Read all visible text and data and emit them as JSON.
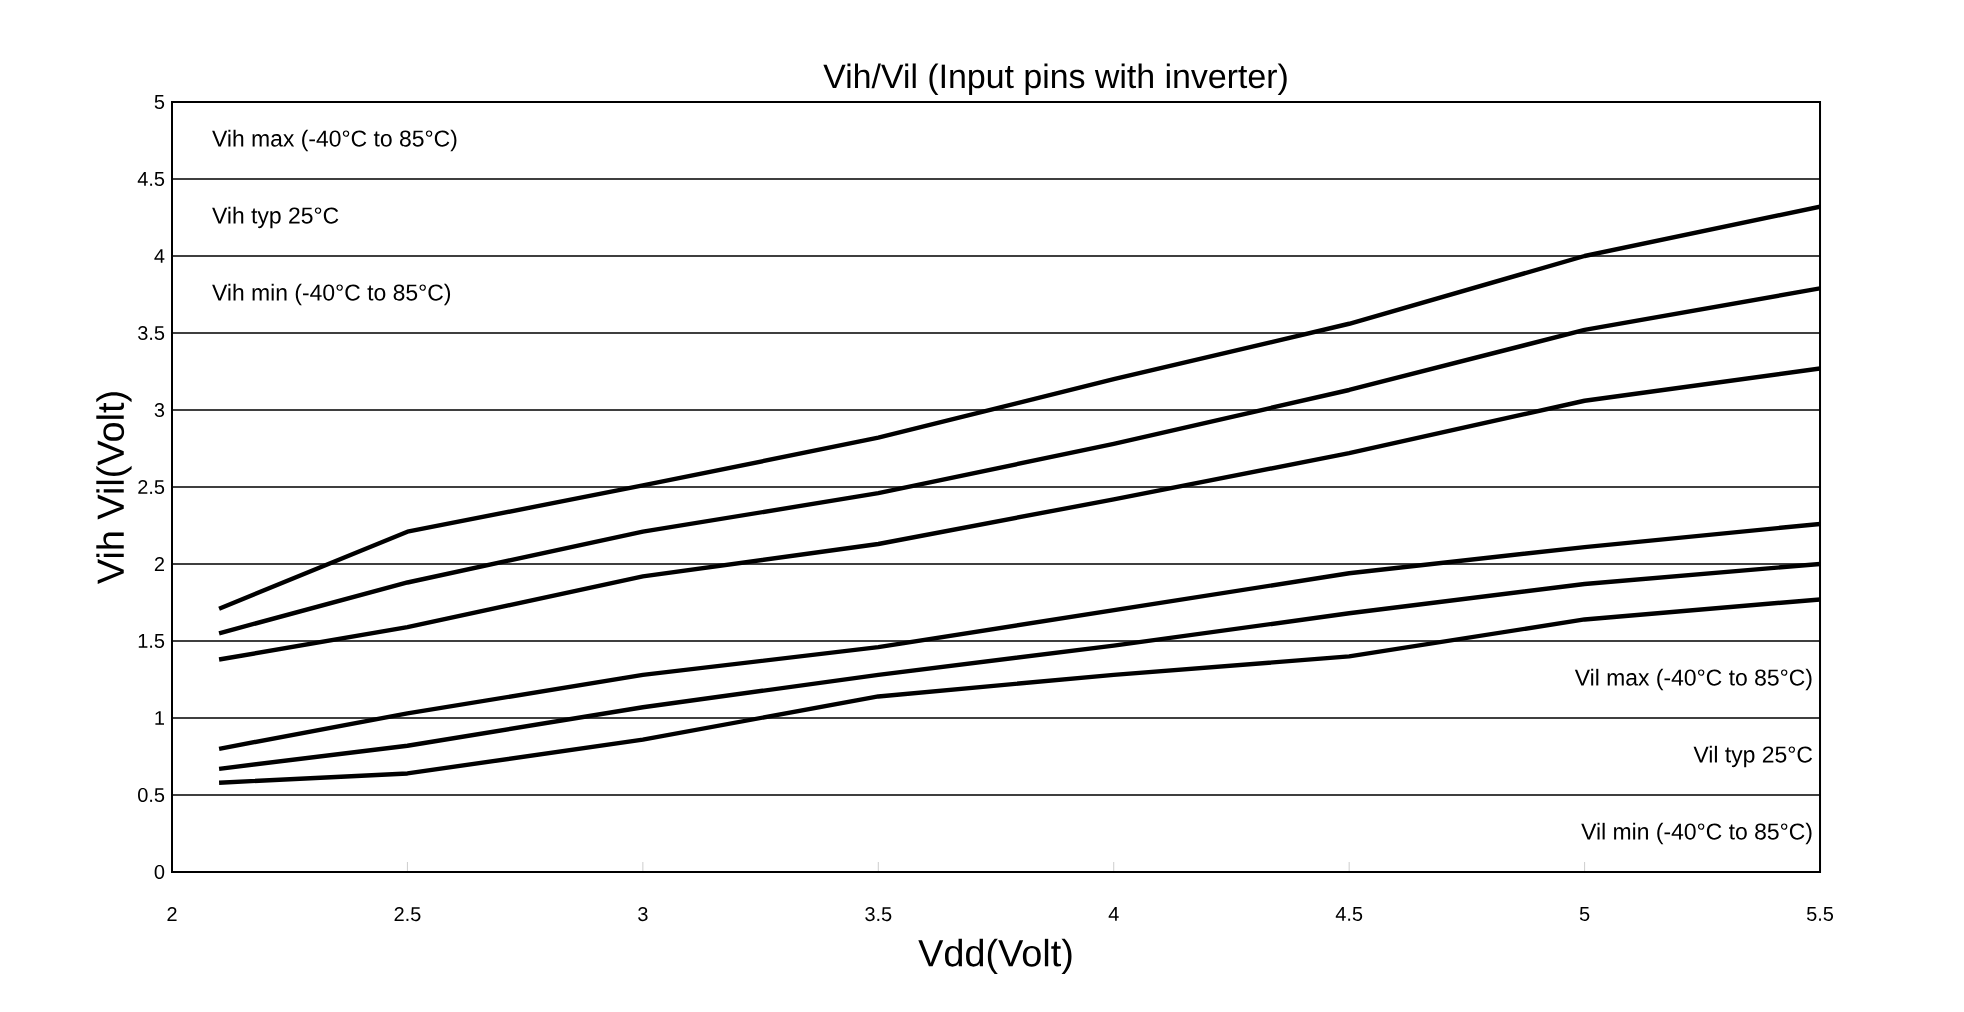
{
  "chart_data": {
    "type": "line",
    "title": "Vih/Vil (Input pins with inverter)",
    "xlabel": "Vdd(Volt)",
    "ylabel": "Vih Vil(Volt)",
    "x": [
      2.1,
      2.5,
      3,
      3.5,
      4,
      4.5,
      5,
      5.5
    ],
    "series": [
      {
        "color": "#000000",
        "values": [
          1.71,
          2.21,
          2.51,
          2.82,
          3.2,
          3.56,
          4.0,
          4.32
        ]
      },
      {
        "color": "#000000",
        "values": [
          1.55,
          1.88,
          2.21,
          2.46,
          2.78,
          3.13,
          3.52,
          3.79
        ]
      },
      {
        "color": "#000000",
        "values": [
          1.38,
          1.59,
          1.92,
          2.13,
          2.42,
          2.72,
          3.06,
          3.27
        ]
      },
      {
        "color": "#000000",
        "values": [
          0.8,
          1.03,
          1.28,
          1.46,
          1.7,
          1.94,
          2.11,
          2.26
        ]
      },
      {
        "color": "#000000",
        "values": [
          0.67,
          0.82,
          1.07,
          1.28,
          1.47,
          1.68,
          1.87,
          2.0
        ]
      },
      {
        "color": "#000000",
        "values": [
          0.58,
          0.64,
          0.86,
          1.14,
          1.28,
          1.4,
          1.64,
          1.77
        ]
      }
    ],
    "xlim": [
      2,
      5.5
    ],
    "xticks": [
      2,
      2.5,
      3,
      3.5,
      4,
      4.5,
      5,
      5.5
    ],
    "ylim": [
      0,
      5
    ],
    "yticks": [
      0,
      0.5,
      1,
      1.5,
      2,
      2.5,
      3,
      3.5,
      4,
      4.5,
      5
    ],
    "grid": "y",
    "marker": "none",
    "line_style": "solid",
    "annotations": [
      "Vih max (-40°C to 85°C)",
      "Vih typ 25°C",
      "Vih min (-40°C to 85°C)",
      "Vil max (-40°C to 85°C)",
      "Vil typ 25°C",
      "Vil min (-40°C to 85°C)"
    ]
  }
}
